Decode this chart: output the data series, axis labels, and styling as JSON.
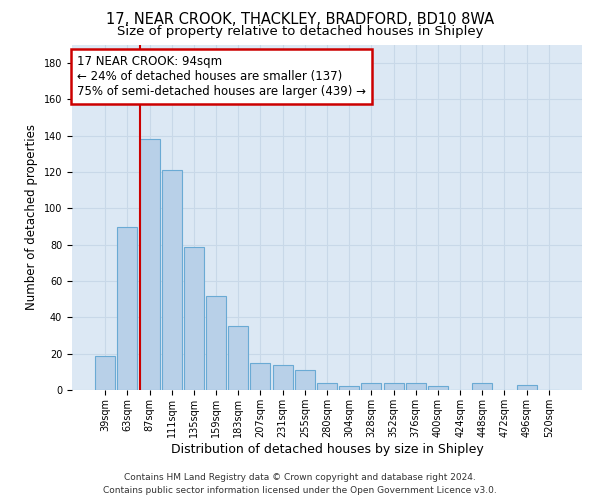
{
  "title1": "17, NEAR CROOK, THACKLEY, BRADFORD, BD10 8WA",
  "title2": "Size of property relative to detached houses in Shipley",
  "xlabel": "Distribution of detached houses by size in Shipley",
  "ylabel": "Number of detached properties",
  "categories": [
    "39sqm",
    "63sqm",
    "87sqm",
    "111sqm",
    "135sqm",
    "159sqm",
    "183sqm",
    "207sqm",
    "231sqm",
    "255sqm",
    "280sqm",
    "304sqm",
    "328sqm",
    "352sqm",
    "376sqm",
    "400sqm",
    "424sqm",
    "448sqm",
    "472sqm",
    "496sqm",
    "520sqm"
  ],
  "values": [
    19,
    90,
    138,
    121,
    79,
    52,
    35,
    15,
    14,
    11,
    4,
    2,
    4,
    4,
    4,
    2,
    0,
    4,
    0,
    3,
    0
  ],
  "bar_color": "#b8d0e8",
  "bar_edge_color": "#6aaad4",
  "vline_x_idx": 2,
  "vline_color": "#cc0000",
  "annotation_text": "17 NEAR CROOK: 94sqm\n← 24% of detached houses are smaller (137)\n75% of semi-detached houses are larger (439) →",
  "annotation_box_color": "#ffffff",
  "annotation_box_edge": "#cc0000",
  "ylim": [
    0,
    190
  ],
  "yticks": [
    0,
    20,
    40,
    60,
    80,
    100,
    120,
    140,
    160,
    180
  ],
  "grid_color": "#c8d8e8",
  "bg_color": "#dce8f4",
  "footer1": "Contains HM Land Registry data © Crown copyright and database right 2024.",
  "footer2": "Contains public sector information licensed under the Open Government Licence v3.0.",
  "title1_fontsize": 10.5,
  "title2_fontsize": 9.5,
  "xlabel_fontsize": 9,
  "ylabel_fontsize": 8.5,
  "tick_fontsize": 7,
  "annotation_fontsize": 8.5,
  "footer_fontsize": 6.5
}
